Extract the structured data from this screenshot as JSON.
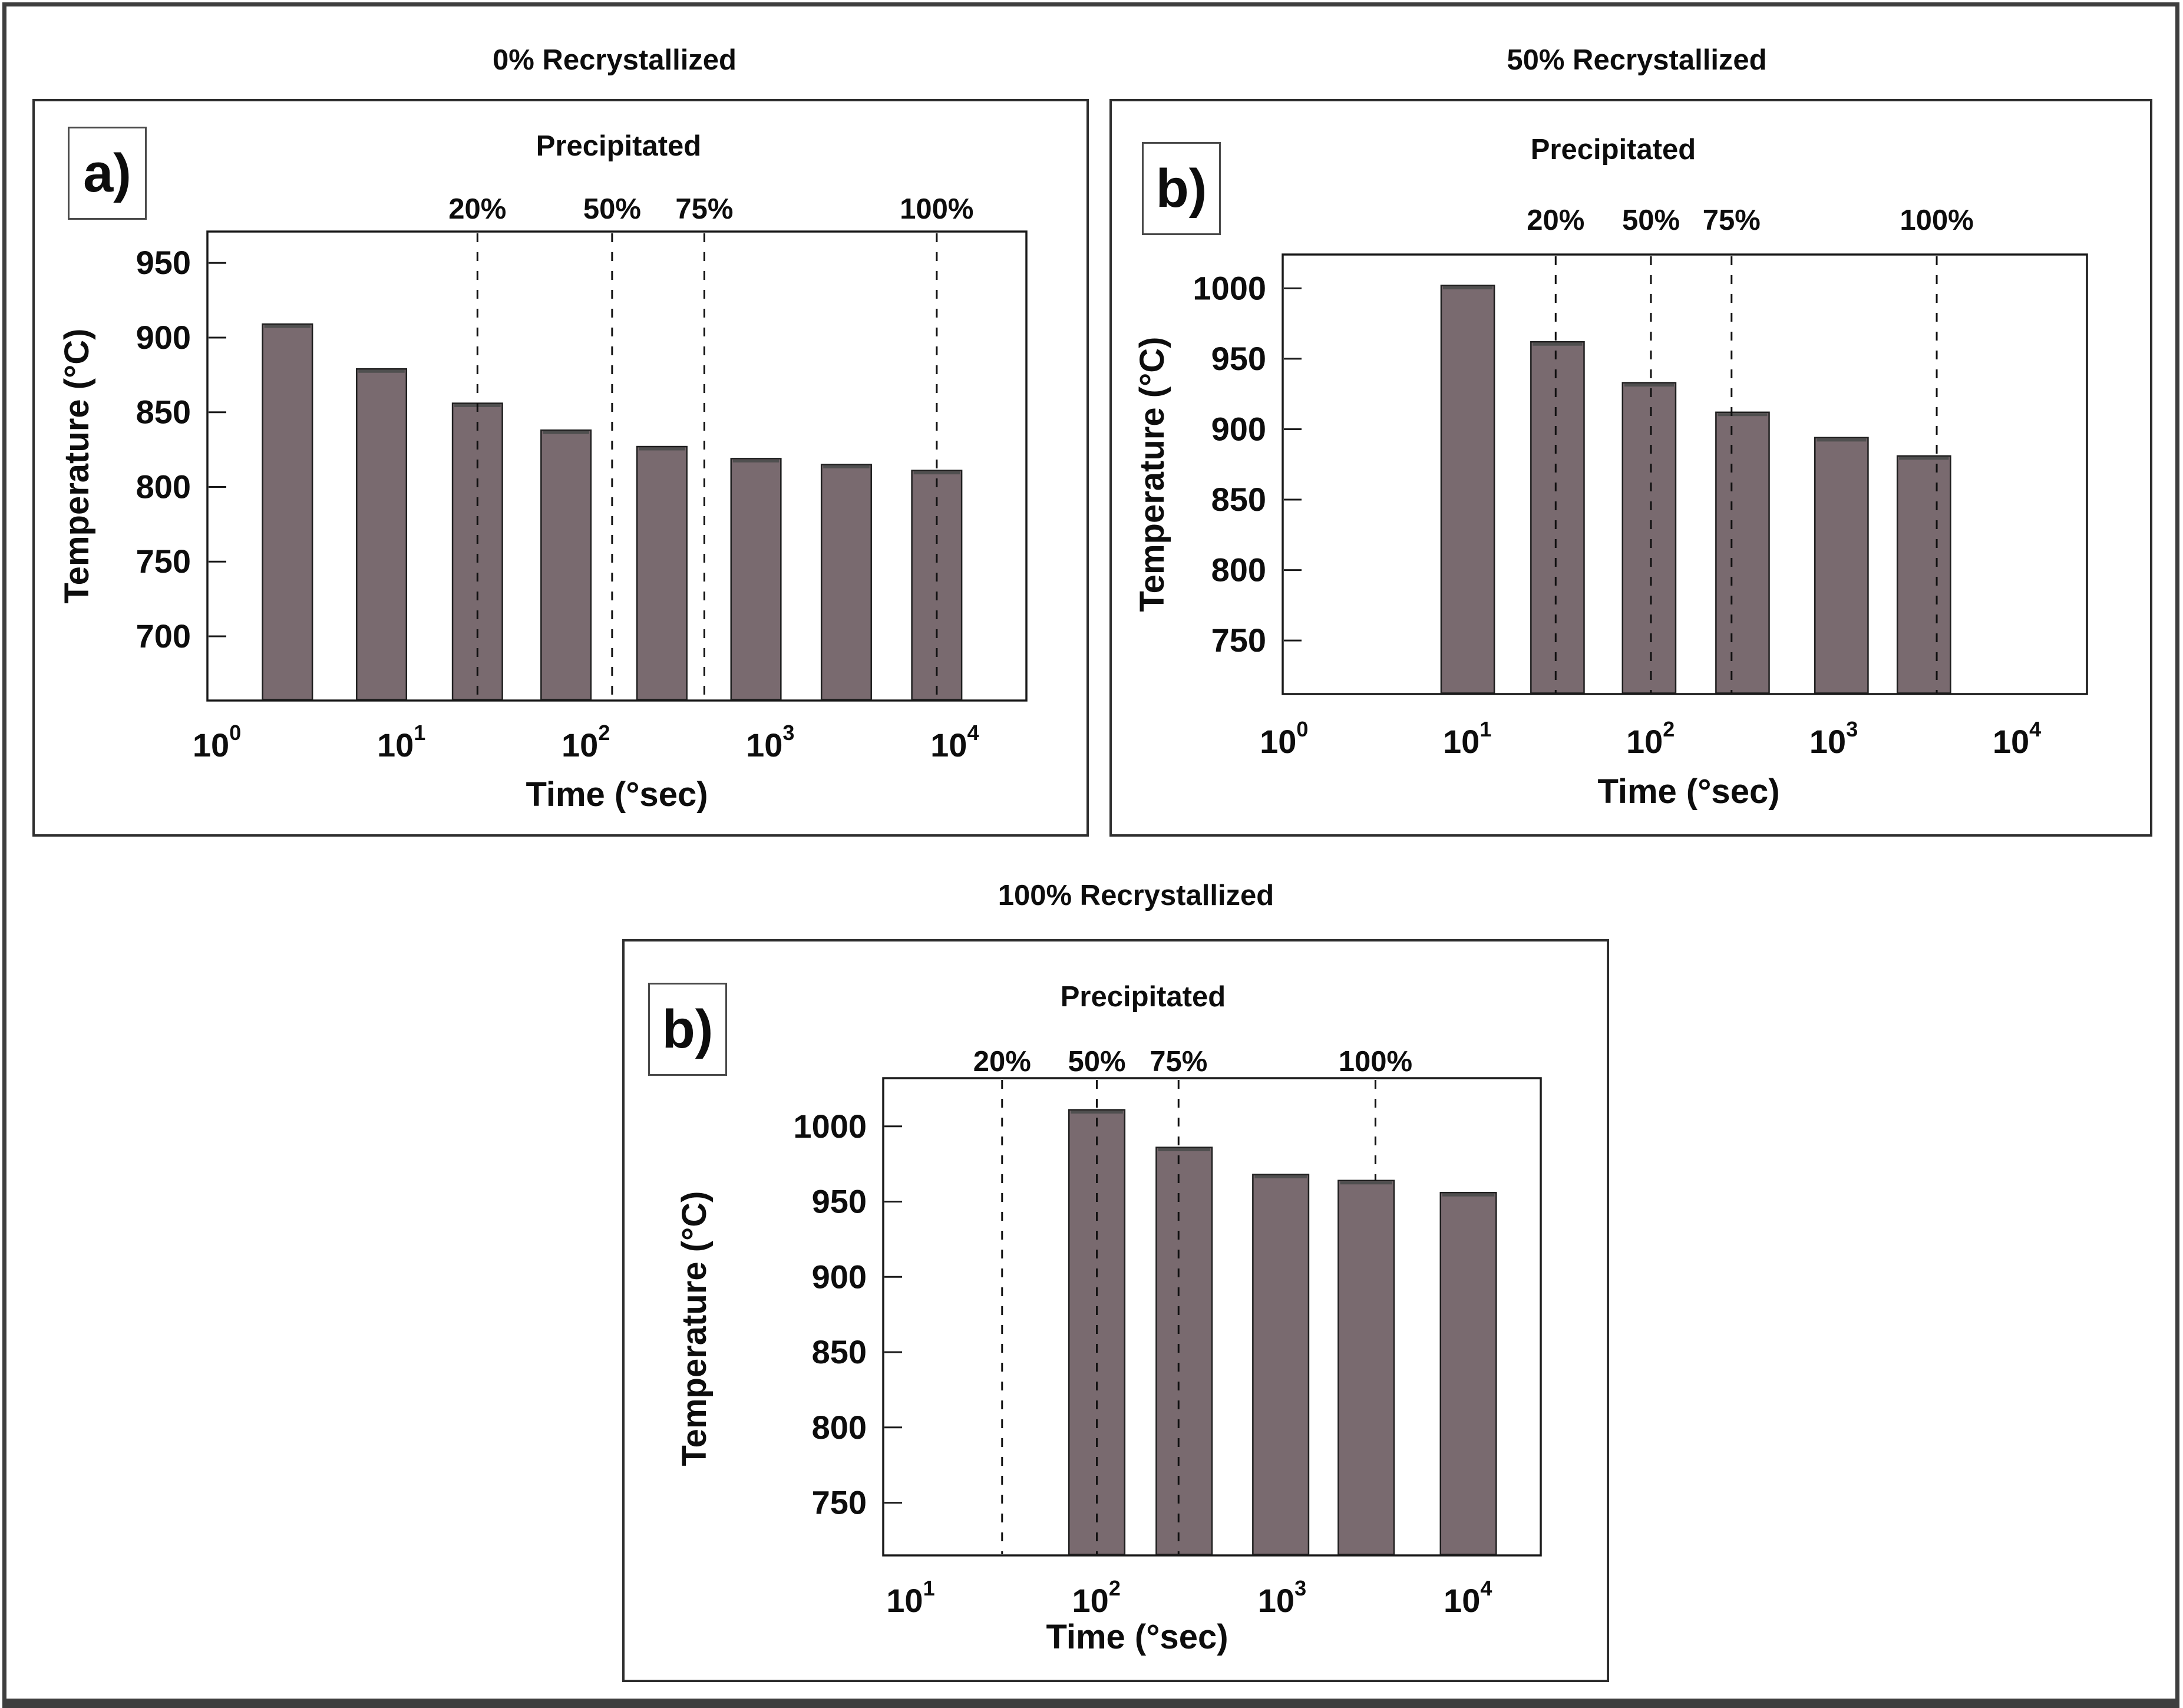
{
  "figure": {
    "panels": [
      {
        "id": "panel-0pct",
        "label": "a)",
        "title": "0% Recrystallized"
      },
      {
        "id": "panel-50pct",
        "label": "b)",
        "title": "50% Recrystallized"
      },
      {
        "id": "panel-100pct",
        "label": "b)",
        "title": "100% Recrystallized"
      }
    ]
  },
  "colors": {
    "bar_fill": "#796a6f",
    "bar_edge": "#1f1f1f",
    "bar_top_cap": "#4f4f4f",
    "axis": "#1a1a1a",
    "dashed_line": "#101010",
    "panel_border": "#2e2e2e",
    "outer_border": "#3e3e3e"
  },
  "chart_data": [
    {
      "type": "bar",
      "title": "0% Recrystallized",
      "panel_label": "a)",
      "precipitated_title": "Precipitated",
      "xlabel": "Time (°sec)",
      "ylabel": "Temperature (°C)",
      "x_scale": "log",
      "x_tick_exponents": [
        0,
        1,
        2,
        3,
        4
      ],
      "xlim_log10": [
        -0.054,
        4.386
      ],
      "ylim": [
        657,
        971
      ],
      "y_ticks": [
        700,
        750,
        800,
        850,
        900,
        950
      ],
      "bar_width_dex": 0.27,
      "bars": [
        {
          "log10_time": 0.38,
          "time_sec_approx": 2.4,
          "temperature_c": 909
        },
        {
          "log10_time": 0.89,
          "time_sec_approx": 8,
          "temperature_c": 879
        },
        {
          "log10_time": 1.41,
          "time_sec_approx": 26,
          "temperature_c": 856
        },
        {
          "log10_time": 1.89,
          "time_sec_approx": 78,
          "temperature_c": 838
        },
        {
          "log10_time": 2.41,
          "time_sec_approx": 257,
          "temperature_c": 827
        },
        {
          "log10_time": 2.92,
          "time_sec_approx": 830,
          "temperature_c": 819
        },
        {
          "log10_time": 3.41,
          "time_sec_approx": 2570,
          "temperature_c": 815
        },
        {
          "log10_time": 3.9,
          "time_sec_approx": 7940,
          "temperature_c": 811
        }
      ],
      "precipitated_lines": [
        {
          "label": "20%",
          "log10_time": 1.41,
          "time_sec_approx": 26
        },
        {
          "label": "50%",
          "log10_time": 2.14,
          "time_sec_approx": 138
        },
        {
          "label": "75%",
          "log10_time": 2.64,
          "time_sec_approx": 437
        },
        {
          "label": "100%",
          "log10_time": 3.9,
          "time_sec_approx": 7940
        }
      ]
    },
    {
      "type": "bar",
      "title": "50% Recrystallized",
      "panel_label": "b)",
      "precipitated_title": "Precipitated",
      "xlabel": "Time (°sec)",
      "ylabel": "Temperature (°C)",
      "x_scale": "log",
      "x_tick_exponents": [
        0,
        1,
        2,
        3,
        4
      ],
      "xlim_log10": [
        -0.01,
        4.38
      ],
      "ylim": [
        712,
        1024
      ],
      "y_ticks": [
        750,
        800,
        850,
        900,
        950,
        1000
      ],
      "bar_width_dex": 0.29,
      "bars": [
        {
          "log10_time": 1.0,
          "time_sec_approx": 10,
          "temperature_c": 1002
        },
        {
          "log10_time": 1.49,
          "time_sec_approx": 31,
          "temperature_c": 962
        },
        {
          "log10_time": 1.99,
          "time_sec_approx": 98,
          "temperature_c": 933
        },
        {
          "log10_time": 2.5,
          "time_sec_approx": 316,
          "temperature_c": 912
        },
        {
          "log10_time": 3.04,
          "time_sec_approx": 1100,
          "temperature_c": 894
        },
        {
          "log10_time": 3.49,
          "time_sec_approx": 3100,
          "temperature_c": 881
        }
      ],
      "precipitated_lines": [
        {
          "label": "20%",
          "log10_time": 1.48,
          "time_sec_approx": 30
        },
        {
          "label": "50%",
          "log10_time": 2.0,
          "time_sec_approx": 100
        },
        {
          "label": "75%",
          "log10_time": 2.44,
          "time_sec_approx": 275
        },
        {
          "label": "100%",
          "log10_time": 3.56,
          "time_sec_approx": 3600
        }
      ]
    },
    {
      "type": "bar",
      "title": "100% Recrystallized",
      "panel_label": "b)",
      "precipitated_title": "Precipitated",
      "xlabel": "Time (°sec)",
      "ylabel": "Temperature (°C)",
      "x_scale": "log",
      "x_tick_exponents": [
        1,
        2,
        3,
        4
      ],
      "xlim_log10": [
        0.85,
        4.39
      ],
      "ylim": [
        715,
        1032
      ],
      "y_ticks": [
        750,
        800,
        850,
        900,
        950,
        1000
      ],
      "bar_width_dex": 0.3,
      "bars": [
        {
          "log10_time": 2.0,
          "time_sec_approx": 100,
          "temperature_c": 1011
        },
        {
          "log10_time": 2.47,
          "time_sec_approx": 295,
          "temperature_c": 986
        },
        {
          "log10_time": 2.99,
          "time_sec_approx": 980,
          "temperature_c": 968
        },
        {
          "log10_time": 3.45,
          "time_sec_approx": 2820,
          "temperature_c": 964
        },
        {
          "log10_time": 4.0,
          "time_sec_approx": 10000,
          "temperature_c": 956
        }
      ],
      "precipitated_lines": [
        {
          "label": "20%",
          "log10_time": 1.49,
          "time_sec_approx": 31
        },
        {
          "label": "50%",
          "log10_time": 2.0,
          "time_sec_approx": 100
        },
        {
          "label": "75%",
          "log10_time": 2.44,
          "time_sec_approx": 275
        },
        {
          "label": "100%",
          "log10_time": 3.5,
          "time_sec_approx": 3160,
          "line_ends_at_temperature_c": 964
        }
      ]
    }
  ]
}
